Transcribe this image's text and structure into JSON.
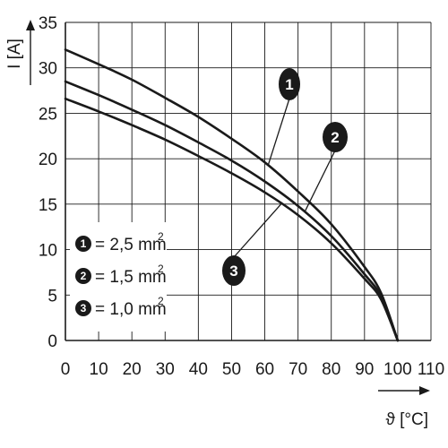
{
  "chart_data": {
    "type": "line",
    "xlabel": "ϑ [°C]",
    "ylabel": "I [A]",
    "xlim": [
      0,
      110
    ],
    "ylim": [
      0,
      35
    ],
    "x_ticks": [
      "0",
      "10",
      "20",
      "30",
      "40",
      "50",
      "60",
      "70",
      "80",
      "90",
      "100",
      "110"
    ],
    "y_ticks": [
      "0",
      "5",
      "10",
      "15",
      "20",
      "25",
      "30",
      "35"
    ],
    "grid": true,
    "legend_position": "bottom-left",
    "colors": {
      "line": "#1a1a1a",
      "grid": "#1a1a1a",
      "badge": "#1a1a1a"
    },
    "series": [
      {
        "badge": "1",
        "legend_value": "= 2,5 mm",
        "legend_sup": "2",
        "x": [
          0,
          10,
          20,
          30,
          40,
          50,
          60,
          70,
          80,
          90,
          95,
          100
        ],
        "y": [
          32,
          30.4,
          28.7,
          26.7,
          24.6,
          22.2,
          19.6,
          16.4,
          12.8,
          8.1,
          5.2,
          0
        ]
      },
      {
        "badge": "2",
        "legend_value": "= 1,5 mm",
        "legend_sup": "2",
        "x": [
          0,
          10,
          20,
          30,
          40,
          50,
          60,
          70,
          80,
          90,
          95,
          100
        ],
        "y": [
          28.5,
          27,
          25.4,
          23.7,
          21.8,
          19.8,
          17.5,
          14.8,
          11.5,
          7.3,
          4.8,
          0
        ]
      },
      {
        "badge": "3",
        "legend_value": "= 1,0 mm",
        "legend_sup": "2",
        "x": [
          0,
          10,
          20,
          30,
          40,
          50,
          60,
          70,
          80,
          90,
          95,
          100
        ],
        "y": [
          26.6,
          25.2,
          23.7,
          22.1,
          20.3,
          18.4,
          16.3,
          13.8,
          10.7,
          6.8,
          4.5,
          0
        ]
      }
    ]
  }
}
